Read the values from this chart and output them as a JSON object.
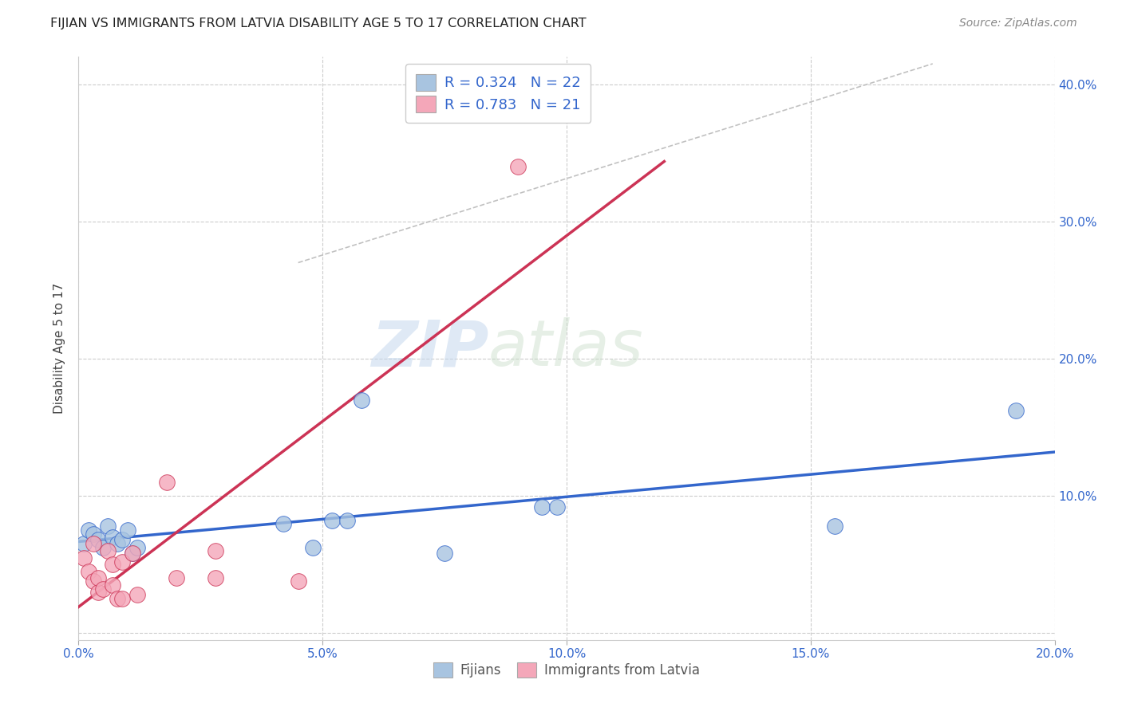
{
  "title": "FIJIAN VS IMMIGRANTS FROM LATVIA DISABILITY AGE 5 TO 17 CORRELATION CHART",
  "source": "Source: ZipAtlas.com",
  "ylabel": "Disability Age 5 to 17",
  "xlim": [
    0.0,
    0.2
  ],
  "ylim": [
    -0.005,
    0.42
  ],
  "xticks": [
    0.0,
    0.05,
    0.1,
    0.15,
    0.2
  ],
  "yticks": [
    0.0,
    0.1,
    0.2,
    0.3,
    0.4
  ],
  "xtick_labels": [
    "0.0%",
    "5.0%",
    "10.0%",
    "15.0%",
    "20.0%"
  ],
  "ytick_labels_right": [
    "",
    "10.0%",
    "20.0%",
    "30.0%",
    "40.0%"
  ],
  "fijian_x": [
    0.001,
    0.002,
    0.003,
    0.004,
    0.005,
    0.006,
    0.007,
    0.008,
    0.009,
    0.01,
    0.011,
    0.012,
    0.042,
    0.048,
    0.052,
    0.055,
    0.058,
    0.075,
    0.095,
    0.098,
    0.155,
    0.192
  ],
  "fijian_y": [
    0.065,
    0.075,
    0.072,
    0.068,
    0.062,
    0.078,
    0.07,
    0.065,
    0.068,
    0.075,
    0.058,
    0.062,
    0.08,
    0.062,
    0.082,
    0.082,
    0.17,
    0.058,
    0.092,
    0.092,
    0.078,
    0.162
  ],
  "latvia_x": [
    0.001,
    0.002,
    0.003,
    0.003,
    0.004,
    0.004,
    0.005,
    0.006,
    0.007,
    0.007,
    0.008,
    0.009,
    0.009,
    0.011,
    0.012,
    0.018,
    0.02,
    0.028,
    0.028,
    0.045,
    0.09
  ],
  "latvia_y": [
    0.055,
    0.045,
    0.038,
    0.065,
    0.03,
    0.04,
    0.032,
    0.06,
    0.05,
    0.035,
    0.025,
    0.025,
    0.052,
    0.058,
    0.028,
    0.11,
    0.04,
    0.06,
    0.04,
    0.038,
    0.34
  ],
  "fijian_color": "#a8c4e0",
  "latvia_color": "#f4a7b9",
  "fijian_line_color": "#3366cc",
  "latvia_line_color": "#cc3355",
  "fijian_R": "0.324",
  "fijian_N": "22",
  "latvia_R": "0.783",
  "latvia_N": "21",
  "legend_label_fijian": "Fijians",
  "legend_label_latvia": "Immigrants from Latvia",
  "watermark_zip": "ZIP",
  "watermark_atlas": "atlas",
  "background_color": "#ffffff",
  "grid_color": "#cccccc"
}
